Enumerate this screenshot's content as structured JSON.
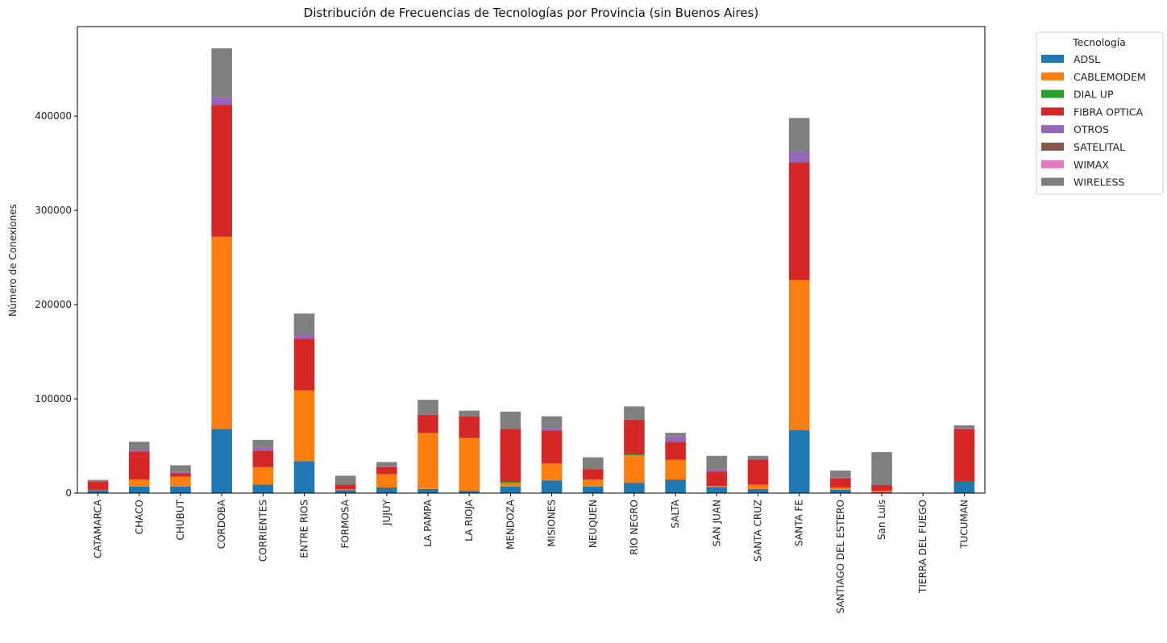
{
  "chart_data": {
    "type": "bar",
    "stacked": true,
    "title": "Distribución de Frecuencias de Tecnologías por Provincia (sin Buenos Aires)",
    "xlabel": "",
    "ylabel": "Número de Conexiones",
    "ylim": [
      0,
      495000
    ],
    "yticks": [
      0,
      100000,
      200000,
      300000,
      400000
    ],
    "ytick_labels": [
      "0",
      "100000",
      "200000",
      "300000",
      "400000"
    ],
    "legend_title": "Tecnología",
    "legend_position": "outside-right",
    "categories": [
      "CATAMARCA",
      "CHACO",
      "CHUBUT",
      "CORDOBA",
      "CORRIENTES",
      "ENTRE RIOS",
      "FORMOSA",
      "JUJUY",
      "LA PAMPA",
      "LA RIOJA",
      "MENDOZA",
      "MISIONES",
      "NEUQUEN",
      "RIO NEGRO",
      "SALTA",
      "SAN JUAN",
      "SANTA CRUZ",
      "SANTA FE",
      "SANTIAGO DEL ESTERO",
      "San Luis",
      "TIERRA DEL FUEGO",
      "TUCUMAN"
    ],
    "series": [
      {
        "name": "ADSL",
        "color": "#1f77b4",
        "values": [
          3000,
          7000,
          7000,
          68000,
          9000,
          34000,
          3000,
          6000,
          4500,
          2500,
          7000,
          13500,
          7000,
          11000,
          14500,
          6500,
          4500,
          67000,
          3500,
          1000,
          0,
          12000
        ]
      },
      {
        "name": "CABLEMODEM",
        "color": "#ff7f0e",
        "values": [
          500,
          7500,
          10500,
          204000,
          18500,
          75000,
          1000,
          14000,
          59500,
          56000,
          3500,
          18000,
          7500,
          29000,
          21000,
          1000,
          4500,
          159000,
          2500,
          1500,
          0,
          0
        ]
      },
      {
        "name": "DIAL UP",
        "color": "#2ca02c",
        "values": [
          0,
          0,
          0,
          0,
          0,
          0,
          0,
          0,
          0,
          0,
          1500,
          0,
          0,
          1000,
          0,
          0,
          0,
          0,
          0,
          0,
          0,
          0
        ]
      },
      {
        "name": "FIBRA OPTICA",
        "color": "#d62728",
        "values": [
          9000,
          29500,
          3500,
          140000,
          17500,
          55000,
          5000,
          8000,
          19000,
          23000,
          56000,
          35000,
          11000,
          37000,
          19000,
          15500,
          26500,
          125000,
          10000,
          6000,
          0,
          56000
        ]
      },
      {
        "name": "OTROS",
        "color": "#9467bd",
        "values": [
          0,
          2000,
          1500,
          8000,
          3500,
          4000,
          0,
          500,
          0,
          0,
          0,
          2500,
          0,
          0,
          5500,
          2500,
          500,
          11000,
          500,
          0,
          0,
          500
        ]
      },
      {
        "name": "SATELITAL",
        "color": "#8c564b",
        "values": [
          0,
          0,
          0,
          0,
          0,
          0,
          0,
          0,
          0,
          0,
          0,
          0,
          0,
          0,
          0,
          0,
          0,
          0,
          0,
          0,
          0,
          0
        ]
      },
      {
        "name": "WIMAX",
        "color": "#e377c2",
        "values": [
          0,
          0,
          0,
          0,
          0,
          0,
          0,
          0,
          0,
          0,
          0,
          0,
          0,
          0,
          0,
          0,
          0,
          0,
          0,
          0,
          0,
          0
        ]
      },
      {
        "name": "WIRELESS",
        "color": "#7f7f7f",
        "values": [
          1500,
          8500,
          7000,
          52000,
          8000,
          22500,
          9500,
          4500,
          16000,
          6000,
          18500,
          12500,
          12500,
          14000,
          4000,
          14000,
          3500,
          36000,
          7500,
          35000,
          0,
          3500
        ]
      }
    ]
  }
}
